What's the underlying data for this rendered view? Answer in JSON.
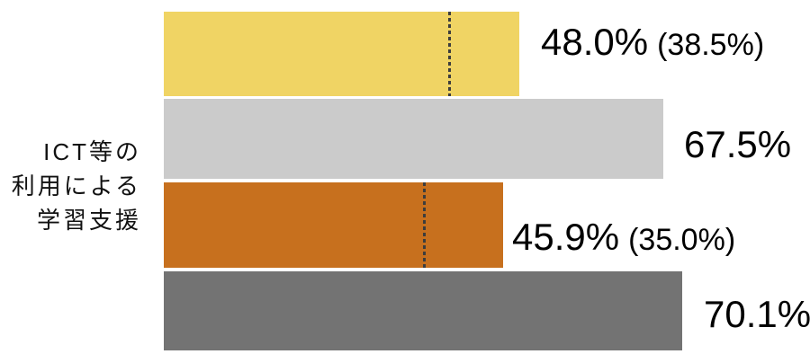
{
  "chart_data": {
    "type": "bar",
    "orientation": "horizontal",
    "category": "ICT等の利用による学習支援",
    "category_lines": [
      "ICT等の",
      "利用による",
      "学習支援"
    ],
    "unit": "%",
    "axes_visible": false,
    "legend_position": "none",
    "grid": false,
    "bars": [
      {
        "value": 48.0,
        "value_label": "48.0%",
        "ref_value": 38.5,
        "ref_label": "(38.5%)",
        "color": "#F0D464"
      },
      {
        "value": 67.5,
        "value_label": "67.5%",
        "color": "#CBCBCB"
      },
      {
        "value": 45.9,
        "value_label": "45.9%",
        "ref_value": 35.0,
        "ref_label": "(35.0%)",
        "color": "#C7701E"
      },
      {
        "value": 70.1,
        "value_label": "70.1%",
        "color": "#737373"
      }
    ],
    "reference_line_style": "dotted",
    "colors": {
      "reference_line": "#3D3D3D",
      "label_text": "#000000",
      "background": "#FFFFFF"
    }
  }
}
